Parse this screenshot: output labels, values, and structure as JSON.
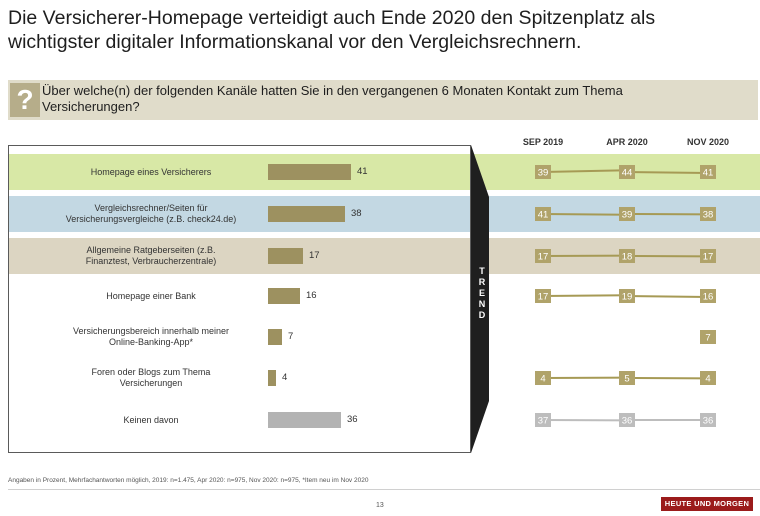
{
  "headline": {
    "line1": "Die Versicherer-Homepage verteidigt auch Ende 2020 den Spitzenplatz als",
    "line2": "wichtigster digitaler Informationskanal vor den Vergleichsrechnern."
  },
  "question": {
    "icon": "?",
    "line1": "Über welche(n) der folgenden Kanäle hatten Sie in den vergangenen 6 Monaten Kontakt zum Thema",
    "line2": "Versicherungen?"
  },
  "trend_label": [
    "T",
    "R",
    "E",
    "N",
    "D"
  ],
  "columns": [
    "SEP 2019",
    "APR 2020",
    "NOV 2020"
  ],
  "colors": {
    "bar": "#9d9160",
    "bar_none": "#b3b3b3",
    "band_green": "#d8e8a6",
    "band_blue": "#c3d8e3",
    "band_tan": "#dcd5c2",
    "trend_box": "#b0a36a",
    "trend_line": "#a69a55",
    "trend_box_none": "#bdbdbd",
    "arrow": "#1f1f1f"
  },
  "chart_data": [
    {
      "type": "bar",
      "categories": [
        [
          "Homepage eines Versicherers"
        ],
        [
          "Vergleichsrechner/Seiten für",
          "Versicherungsvergleiche (z.B. check24.de)"
        ],
        [
          "Allgemeine Ratgeberseiten (z.B.",
          "Finanztest, Verbraucherzentrale)"
        ],
        [
          "Homepage einer Bank"
        ],
        [
          "Versicherungsbereich innerhalb meiner",
          "Online-Banking-App*"
        ],
        [
          "Foren oder Blogs zum Thema",
          "Versicherungen"
        ],
        [
          "Keinen davon"
        ]
      ],
      "values": [
        41,
        38,
        17,
        16,
        7,
        4,
        36
      ],
      "highlight_band": [
        "green",
        "blue",
        "tan",
        "",
        "",
        "",
        ""
      ]
    },
    {
      "type": "line",
      "x": [
        "SEP 2019",
        "APR 2020",
        "NOV 2020"
      ],
      "series": [
        {
          "values": [
            39,
            44,
            41
          ]
        },
        {
          "values": [
            41,
            39,
            38
          ]
        },
        {
          "values": [
            17,
            18,
            17
          ]
        },
        {
          "values": [
            17,
            19,
            16
          ]
        },
        {
          "values": [
            null,
            null,
            7
          ]
        },
        {
          "values": [
            4,
            5,
            4
          ]
        },
        {
          "values": [
            37,
            36,
            36
          ]
        }
      ]
    }
  ],
  "footnote": "Angaben in Prozent, Mehrfachantworten möglich, 2019: n=1.475, Apr 2020: n=975, Nov 2020: n=975, *Item neu im Nov 2020",
  "page_number": "13",
  "logo_text": "HEUTE UND MORGEN"
}
